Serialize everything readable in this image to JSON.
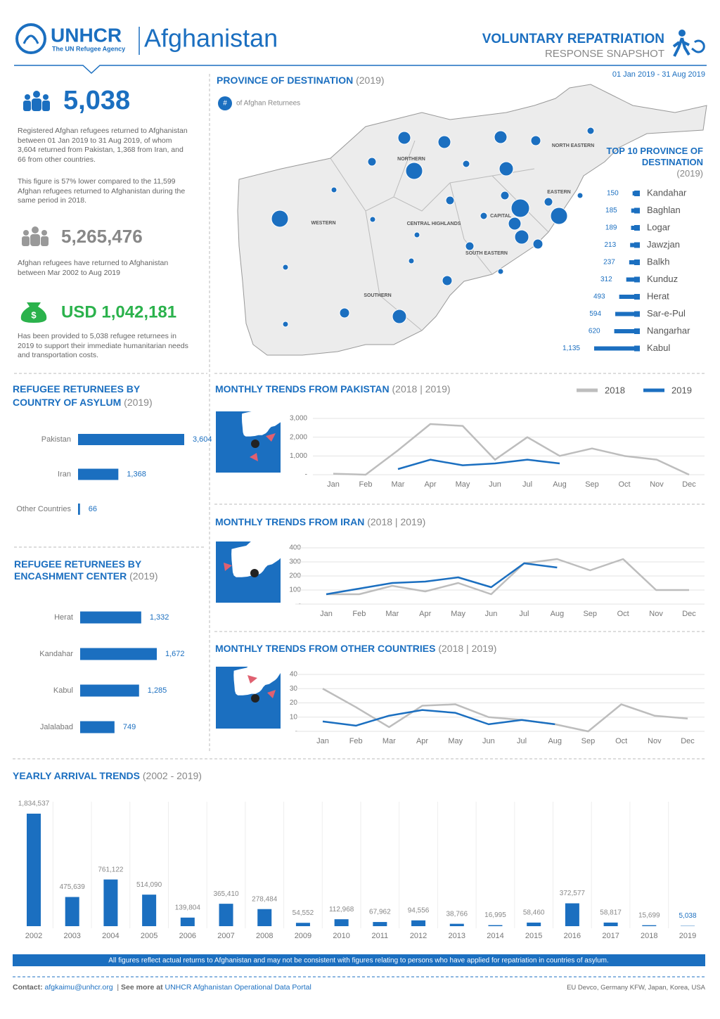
{
  "header": {
    "org": "UNHCR",
    "org_sub": "The UN Refugee Agency",
    "country": "Afghanistan",
    "title": "VOLUNTARY REPATRIATION",
    "subtitle": "RESPONSE SNAPSHOT",
    "period": "01 Jan 2019 - 31 Aug 2019"
  },
  "stats": [
    {
      "value": "5,038",
      "text": "Registered Afghan refugees returned to Afghanistan between 01 Jan 2019 to 31 Aug 2019, of whom 3,604 returned from Pakistan, 1,368 from Iran, and 66 from other countries.",
      "note": "This figure is 57% lower compared to the 11,599 Afghan refugees returned to Afghanistan during the same period in 2018."
    },
    {
      "value": "5,265,476",
      "text": "Afghan refugees have returned to Afghanistan between Mar 2002 to Aug 2019"
    },
    {
      "value": "USD 1,042,181",
      "text": "Has been provided to 5,038 refugee returnees in 2019 to support their immediate humanitarian needs and transportation costs."
    }
  ],
  "map": {
    "title": "PROVINCE OF DESTINATION",
    "title_note": "(2019)",
    "legend_symbol": "#",
    "legend": "of Afghan Returnees",
    "regions": [
      "NORTHERN",
      "NORTH EASTERN",
      "WESTERN",
      "CENTRAL HIGHLANDS",
      "CAPITAL",
      "EASTERN",
      "SOUTH EASTERN",
      "SOUTHERN"
    ]
  },
  "chart_data": [
    {
      "type": "bar",
      "orientation": "horizontal",
      "title": "TOP 10 PROVINCE OF DESTINATION",
      "title_note": "(2019)",
      "categories": [
        "Kandahar",
        "Baghlan",
        "Logar",
        "Jawzjan",
        "Balkh",
        "Kunduz",
        "Herat",
        "Sar-e-Pul",
        "Nangarhar",
        "Kabul"
      ],
      "values": [
        150,
        185,
        189,
        213,
        237,
        312,
        493,
        594,
        620,
        1135
      ],
      "value_labels": [
        "150",
        "185",
        "189",
        "213",
        "237",
        "312",
        "493",
        "594",
        "620",
        "1,135"
      ],
      "color": "#1b6fc0"
    },
    {
      "type": "bar",
      "orientation": "horizontal",
      "title": "REFUGEE RETURNEES BY COUNTRY OF ASYLUM",
      "title_note": "(2019)",
      "categories": [
        "Pakistan",
        "Iran",
        "Other Countries"
      ],
      "values": [
        3604,
        1368,
        66
      ],
      "value_labels": [
        "3,604",
        "1,368",
        "66"
      ],
      "color": "#1b6fc0"
    },
    {
      "type": "bar",
      "orientation": "horizontal",
      "title": "REFUGEE RETURNEES BY ENCASHMENT CENTER",
      "title_note": "(2019)",
      "categories": [
        "Herat",
        "Kandahar",
        "Kabul",
        "Jalalabad"
      ],
      "values": [
        1332,
        1672,
        1285,
        749
      ],
      "value_labels": [
        "1,332",
        "1,672",
        "1,285",
        "749"
      ],
      "color": "#1b6fc0"
    },
    {
      "type": "line",
      "title": "MONTHLY TRENDS FROM PAKISTAN",
      "title_note": "(2018 | 2019)",
      "categories": [
        "Jan",
        "Feb",
        "Mar",
        "Apr",
        "May",
        "Jun",
        "Jul",
        "Aug",
        "Sep",
        "Oct",
        "Nov",
        "Dec"
      ],
      "ylim": [
        0,
        3000
      ],
      "yticks": [
        {
          "value": 0,
          "label": "-"
        },
        {
          "value": 1000,
          "label": "1,000"
        },
        {
          "value": 2000,
          "label": "2,000"
        },
        {
          "value": 3000,
          "label": "3,000"
        }
      ],
      "grid": true,
      "series": [
        {
          "name": "2018",
          "color": "#bdbdbd",
          "values": [
            50,
            0,
            1300,
            2700,
            2600,
            800,
            2000,
            1000,
            1400,
            1000,
            800,
            0
          ]
        },
        {
          "name": "2019",
          "color": "#1b6fc0",
          "values": [
            null,
            null,
            300,
            800,
            500,
            600,
            800,
            600,
            null,
            null,
            null,
            null
          ]
        }
      ]
    },
    {
      "type": "line",
      "title": "MONTHLY TRENDS FROM IRAN",
      "title_note": "(2018 | 2019)",
      "categories": [
        "Jan",
        "Feb",
        "Mar",
        "Apr",
        "May",
        "Jun",
        "Jul",
        "Aug",
        "Sep",
        "Oct",
        "Nov",
        "Dec"
      ],
      "ylim": [
        0,
        400
      ],
      "yticks": [
        {
          "value": 0,
          "label": "-"
        },
        100,
        200,
        300,
        400
      ],
      "grid": true,
      "series": [
        {
          "color": "#bdbdbd",
          "values": [
            70,
            70,
            130,
            90,
            150,
            70,
            290,
            320,
            240,
            320,
            100,
            100
          ]
        },
        {
          "color": "#1b6fc0",
          "values": [
            70,
            110,
            150,
            160,
            190,
            120,
            290,
            260,
            null,
            null,
            null,
            null
          ]
        }
      ]
    },
    {
      "type": "line",
      "title": "MONTHLY TRENDS FROM OTHER COUNTRIES",
      "title_note": "(2018 | 2019)",
      "categories": [
        "Jan",
        "Feb",
        "Mar",
        "Apr",
        "May",
        "Jun",
        "Jul",
        "Aug",
        "Sep",
        "Oct",
        "Nov",
        "Dec"
      ],
      "ylim": [
        0,
        40
      ],
      "yticks": [
        {
          "value": 0,
          "label": "-"
        },
        10,
        20,
        30,
        40
      ],
      "grid": true,
      "series": [
        {
          "color": "#bdbdbd",
          "values": [
            30,
            17,
            3,
            18,
            19,
            10,
            8,
            5,
            0,
            19,
            11,
            9
          ]
        },
        {
          "color": "#1b6fc0",
          "values": [
            7,
            4,
            11,
            15,
            13,
            5,
            8,
            5,
            null,
            null,
            null,
            null
          ]
        }
      ]
    },
    {
      "type": "bar",
      "title": "YEARLY ARRIVAL TRENDS",
      "title_note": "(2002 - 2019)",
      "categories": [
        "2002",
        "2003",
        "2004",
        "2005",
        "2006",
        "2007",
        "2008",
        "2009",
        "2010",
        "2011",
        "2012",
        "2013",
        "2014",
        "2015",
        "2016",
        "2017",
        "2018",
        "2019"
      ],
      "values": [
        1834537,
        475639,
        761122,
        514090,
        139804,
        365410,
        278484,
        54552,
        112968,
        67962,
        94556,
        38766,
        16995,
        58460,
        372577,
        58817,
        15699,
        5038
      ],
      "value_labels": [
        "1,834,537",
        "475,639",
        "761,122",
        "514,090",
        "139,804",
        "365,410",
        "278,484",
        "54,552",
        "112,968",
        "67,962",
        "94,556",
        "38,766",
        "16,995",
        "58,460",
        "372,577",
        "58,817",
        "15,699",
        "5,038"
      ],
      "color": "#1b6fc0"
    }
  ],
  "note": "All figures reflect actual returns to Afghanistan and may not be consistent with figures relating to persons who have applied for repatriation in countries of asylum.",
  "footer": {
    "contact_label": "Contact:",
    "email": "afgkaimu@unhcr.org",
    "see_more": "See more at",
    "portal": "UNHCR Afghanistan Operational Data Portal",
    "donors": "EU Devco, Germany KFW, Japan, Korea, USA"
  }
}
